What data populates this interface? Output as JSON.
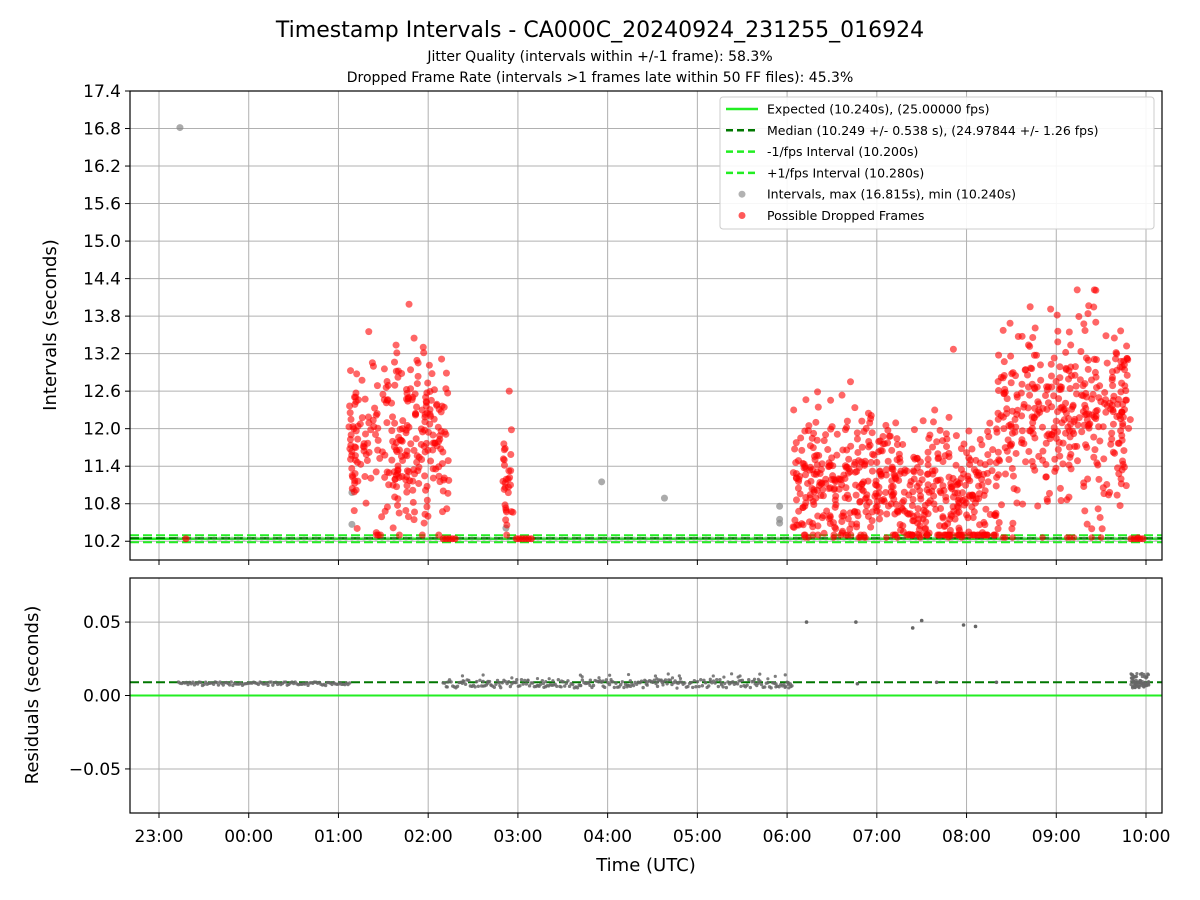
{
  "chart_data": [
    {
      "type": "scatter",
      "panel": "intervals",
      "title": "Timestamp Intervals - CA000C_20240924_231255_016924",
      "subtitle_lines": [
        "Jitter Quality (intervals within +/-1 frame): 58.3%",
        "Dropped Frame Rate (intervals >1 frames late within 50 FF files): 45.3%"
      ],
      "xlabel": "",
      "ylabel": "Intervals (seconds)",
      "ylim": [
        9.9,
        17.4
      ],
      "yticks": [
        "10.2",
        "10.8",
        "11.4",
        "12.0",
        "12.6",
        "13.2",
        "13.8",
        "14.4",
        "15.0",
        "15.6",
        "16.2",
        "16.8",
        "17.4"
      ],
      "x_axis": "time (UTC), shared with residual panel",
      "grid": true,
      "legend_position": "top-right",
      "reference_lines": [
        {
          "name": "Expected (10.240s), (25.00000 fps)",
          "y": 10.24,
          "color": "#22ee22",
          "style": "solid"
        },
        {
          "name": "Median (10.249 +/- 0.538 s), (24.97844 +/- 1.26 fps)",
          "y": 10.249,
          "color": "#007700",
          "style": "dashed"
        },
        {
          "name": "-1/fps Interval (10.200s)",
          "y": 10.2,
          "color": "#22ee22",
          "style": "dashed"
        },
        {
          "name": "+1/fps Interval (10.280s)",
          "y": 10.28,
          "color": "#22ee22",
          "style": "dashed"
        }
      ],
      "series": [
        {
          "name": "Intervals, max (16.815s), min (10.240s)",
          "color": "#888888",
          "points": [
            {
              "x": "2024-09-24 23:14",
              "y": 16.815
            },
            {
              "x": "2024-09-25 01:09",
              "y": 10.98
            },
            {
              "x": "2024-09-25 01:09",
              "y": 10.47
            },
            {
              "x": "2024-09-25 02:52",
              "y": 10.41
            },
            {
              "x": "2024-09-25 03:56",
              "y": 11.15
            },
            {
              "x": "2024-09-25 04:38",
              "y": 10.89
            },
            {
              "x": "2024-09-25 05:55",
              "y": 10.76
            },
            {
              "x": "2024-09-25 05:55",
              "y": 10.55
            },
            {
              "x": "2024-09-25 05:55",
              "y": 10.49
            }
          ]
        },
        {
          "name": "Possible Dropped Frames",
          "color": "#ff0000",
          "clusters": [
            {
              "from": "2024-09-25 01:07",
              "to": "2024-09-25 02:14",
              "y_median": 11.8,
              "y_min": 10.3,
              "y_max": 13.99
            },
            {
              "from": "2024-09-25 02:50",
              "to": "2024-09-25 02:57",
              "y_median": 11.1,
              "y_min": 10.3,
              "y_max": 12.6
            },
            {
              "from": "2024-09-25 06:04",
              "to": "2024-09-25 07:08",
              "y_median": 11.2,
              "y_min": 10.3,
              "y_max": 12.75
            },
            {
              "from": "2024-09-25 07:08",
              "to": "2024-09-25 08:20",
              "y_median": 10.95,
              "y_min": 10.3,
              "y_max": 13.27
            },
            {
              "from": "2024-09-25 08:20",
              "to": "2024-09-25 09:50",
              "y_median": 12.2,
              "y_min": 10.4,
              "y_max": 14.22
            }
          ],
          "baseline_bands": [
            {
              "from": "2024-09-25 02:10",
              "to": "2024-09-25 02:20",
              "y": 10.24
            },
            {
              "from": "2024-09-25 02:59",
              "to": "2024-09-25 03:10",
              "y": 10.24
            },
            {
              "from": "2024-09-25 09:50",
              "to": "2024-09-25 10:00",
              "y": 10.24
            }
          ]
        }
      ]
    },
    {
      "type": "scatter",
      "panel": "residuals",
      "xlabel": "Time (UTC)",
      "ylabel": "Residuals (seconds)",
      "ylim": [
        -0.08,
        0.08
      ],
      "yticks": [
        "−0.05",
        "0.00",
        "0.05"
      ],
      "xticks": [
        "23:00",
        "00:00",
        "01:00",
        "02:00",
        "03:00",
        "04:00",
        "05:00",
        "06:00",
        "07:00",
        "08:00",
        "09:00",
        "10:00"
      ],
      "grid": true,
      "reference_lines": [
        {
          "name": "zero",
          "y": 0.0,
          "color": "#22ee22",
          "style": "solid"
        },
        {
          "name": "median",
          "y": 0.009,
          "color": "#007700",
          "style": "dashed"
        }
      ],
      "series": [
        {
          "name": "residuals",
          "color": "#666666",
          "bands": [
            {
              "from": "2024-09-24 23:13",
              "to": "2024-09-25 01:08",
              "y": 0.008
            },
            {
              "from": "2024-09-25 02:10",
              "to": "2024-09-25 06:04",
              "y": 0.008
            },
            {
              "from": "2024-09-25 09:50",
              "to": "2024-09-25 10:02",
              "y": 0.008
            }
          ],
          "points": [
            {
              "x": "2024-09-25 06:13",
              "y": 0.05
            },
            {
              "x": "2024-09-25 06:46",
              "y": 0.05
            },
            {
              "x": "2024-09-25 07:24",
              "y": 0.046
            },
            {
              "x": "2024-09-25 07:30",
              "y": 0.051
            },
            {
              "x": "2024-09-25 07:58",
              "y": 0.048
            },
            {
              "x": "2024-09-25 08:06",
              "y": 0.047
            },
            {
              "x": "2024-09-25 06:47",
              "y": 0.008
            },
            {
              "x": "2024-09-25 07:40",
              "y": 0.009
            },
            {
              "x": "2024-09-25 08:20",
              "y": 0.009
            }
          ]
        }
      ]
    }
  ]
}
